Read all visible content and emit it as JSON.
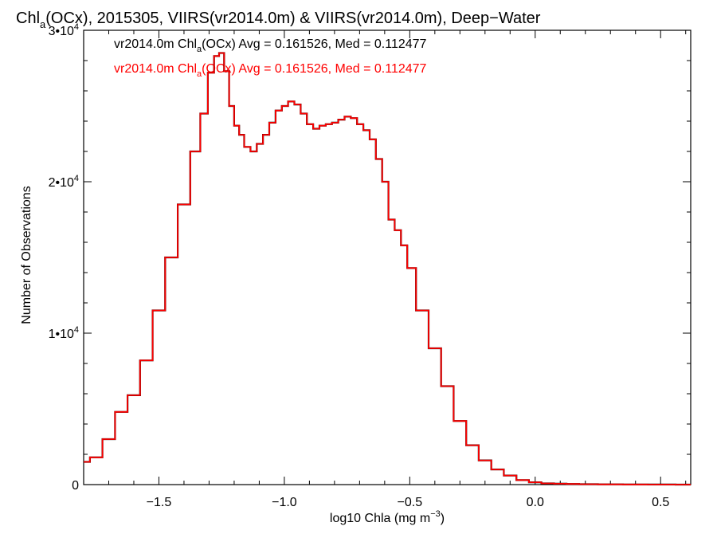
{
  "chart_data": {
    "type": "line",
    "title": {
      "pre": "Chl",
      "sub": "a",
      "post": "(OCx), 2015305, VIIRS(vr2014.0m) & VIIRS(vr2014.0m), Deep−Water"
    },
    "xlabel": {
      "pre": "log10 Chla (mg m",
      "sup": "−3",
      "post": ")"
    },
    "ylabel": "Number of Observations",
    "xlim": [
      -1.8,
      0.62
    ],
    "ylim": [
      0,
      30000
    ],
    "x_ticks": [
      {
        "value": -1.5,
        "label": "−1.5"
      },
      {
        "value": -1.0,
        "label": "−1.0"
      },
      {
        "value": -0.5,
        "label": "−0.5"
      },
      {
        "value": 0.0,
        "label": "0.0"
      },
      {
        "value": 0.5,
        "label": "0.5"
      }
    ],
    "y_ticks": [
      {
        "value": 0,
        "label": "0",
        "sup": ""
      },
      {
        "value": 10000,
        "label": "1•10",
        "sup": "4"
      },
      {
        "value": 20000,
        "label": "2•10",
        "sup": "4"
      },
      {
        "value": 30000,
        "label": "3•10",
        "sup": "4"
      }
    ],
    "legend": [
      {
        "pre": "vr2014.0m Chl",
        "sub": "a",
        "post": "(OCx) Avg = 0.161526, Med = 0.112477",
        "color": "#000000"
      },
      {
        "pre": "vr2014.0m Chl",
        "sub": "a",
        "post": "(OCx) Avg = 0.161526, Med = 0.112477",
        "color": "#ff0000"
      }
    ],
    "series": [
      {
        "color": "#ff0000",
        "x": [
          -1.8,
          -1.75,
          -1.7,
          -1.65,
          -1.6,
          -1.55,
          -1.5,
          -1.45,
          -1.4,
          -1.35,
          -1.32,
          -1.29,
          -1.27,
          -1.25,
          -1.23,
          -1.21,
          -1.19,
          -1.17,
          -1.15,
          -1.12,
          -1.1,
          -1.07,
          -1.05,
          -1.02,
          -1.0,
          -0.97,
          -0.95,
          -0.92,
          -0.9,
          -0.87,
          -0.85,
          -0.82,
          -0.8,
          -0.77,
          -0.75,
          -0.72,
          -0.7,
          -0.67,
          -0.65,
          -0.62,
          -0.6,
          -0.57,
          -0.55,
          -0.52,
          -0.5,
          -0.45,
          -0.4,
          -0.35,
          -0.3,
          -0.25,
          -0.2,
          -0.15,
          -0.1,
          -0.05,
          0.0,
          0.05,
          0.1,
          0.15,
          0.2,
          0.3,
          0.4,
          0.5,
          0.62
        ],
        "y": [
          1500,
          1800,
          3000,
          4800,
          5900,
          8200,
          11500,
          15000,
          18500,
          22000,
          24500,
          27200,
          28300,
          28500,
          27300,
          25000,
          23700,
          23100,
          22300,
          22000,
          22500,
          23100,
          23900,
          24700,
          25000,
          25300,
          25100,
          24500,
          23800,
          23500,
          23700,
          23800,
          23900,
          24100,
          24300,
          24200,
          23800,
          23400,
          22800,
          21500,
          20000,
          17500,
          16800,
          15800,
          14300,
          11500,
          9000,
          6500,
          4200,
          2600,
          1600,
          1000,
          600,
          300,
          150,
          80,
          60,
          40,
          25,
          15,
          8,
          5,
          2
        ]
      }
    ]
  }
}
